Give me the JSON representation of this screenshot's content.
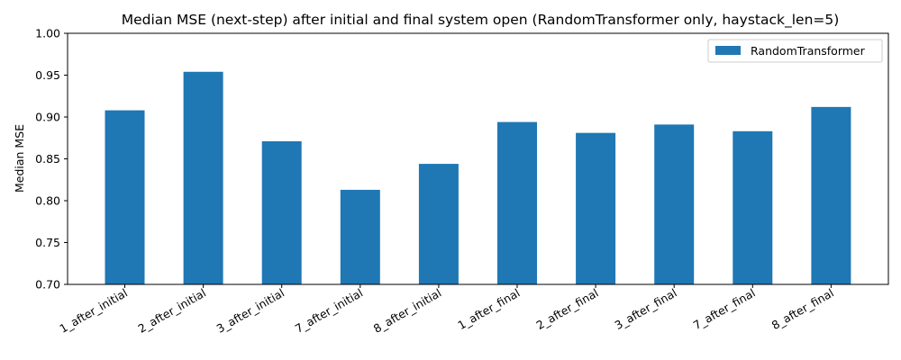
{
  "chart_data": {
    "type": "bar",
    "title": "Median MSE (next-step) after initial and final system open (RandomTransformer only, haystack_len=5)",
    "xlabel": "",
    "ylabel": "Median MSE",
    "ylim": [
      0.7,
      1.0
    ],
    "yticks": [
      "0.70",
      "0.75",
      "0.80",
      "0.85",
      "0.90",
      "0.95",
      "1.00"
    ],
    "categories": [
      "1_after_initial",
      "2_after_initial",
      "3_after_initial",
      "7_after_initial",
      "8_after_initial",
      "1_after_final",
      "2_after_final",
      "3_after_final",
      "7_after_final",
      "8_after_final"
    ],
    "series": [
      {
        "name": "RandomTransformer",
        "color": "#1f77b4",
        "values": [
          0.908,
          0.954,
          0.871,
          0.813,
          0.844,
          0.894,
          0.881,
          0.891,
          0.883,
          0.912
        ]
      }
    ],
    "legend": "top-right",
    "grid": false
  }
}
